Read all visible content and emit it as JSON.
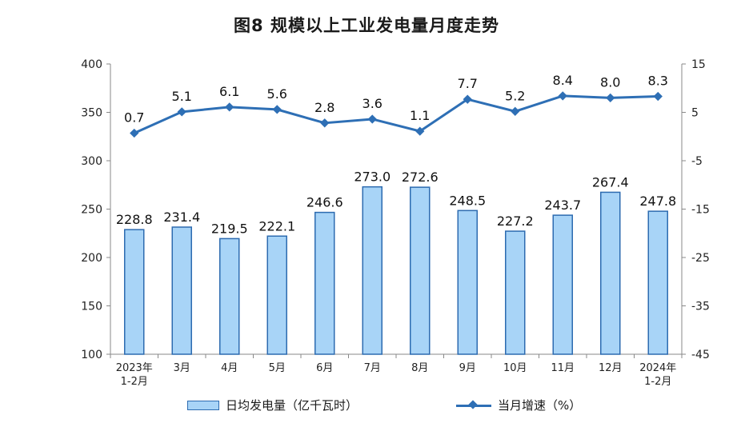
{
  "chart_data": {
    "type": "bar+line",
    "title": "图8  规模以上工业发电量月度走势",
    "categories": [
      [
        "2023年",
        "1-2月"
      ],
      [
        "3月"
      ],
      [
        "4月"
      ],
      [
        "5月"
      ],
      [
        "6月"
      ],
      [
        "7月"
      ],
      [
        "8月"
      ],
      [
        "9月"
      ],
      [
        "10月"
      ],
      [
        "11月"
      ],
      [
        "12月"
      ],
      [
        "2024年",
        "1-2月"
      ]
    ],
    "series": [
      {
        "name": "日均发电量（亿千瓦时）",
        "type": "bar",
        "axis": "left",
        "values": [
          228.8,
          231.4,
          219.5,
          222.1,
          246.6,
          273.0,
          272.6,
          248.5,
          227.2,
          243.7,
          267.4,
          247.8
        ],
        "labels": [
          "228.8",
          "231.4",
          "219.5",
          "222.1",
          "246.6",
          "273.0",
          "272.6",
          "248.5",
          "227.2",
          "243.7",
          "267.4",
          "247.8"
        ],
        "fill": "#a8d4f7",
        "stroke": "#2d6bb0"
      },
      {
        "name": "当月增速（%）",
        "type": "line",
        "axis": "right",
        "values": [
          0.7,
          5.1,
          6.1,
          5.6,
          2.8,
          3.6,
          1.1,
          7.7,
          5.2,
          8.4,
          8.0,
          8.3
        ],
        "labels": [
          "0.7",
          "5.1",
          "6.1",
          "5.6",
          "2.8",
          "3.6",
          "1.1",
          "7.7",
          "5.2",
          "8.4",
          "8.0",
          "8.3"
        ],
        "color": "#2e6fb5"
      }
    ],
    "y_left": {
      "min": 100,
      "max": 400,
      "ticks": [
        "100",
        "150",
        "200",
        "250",
        "300",
        "350",
        "400"
      ]
    },
    "y_right": {
      "min": -45,
      "max": 15,
      "ticks": [
        "-45",
        "-35",
        "-25",
        "-15",
        "-5",
        "5",
        "15"
      ]
    },
    "grid": false,
    "legend_position": "bottom"
  }
}
